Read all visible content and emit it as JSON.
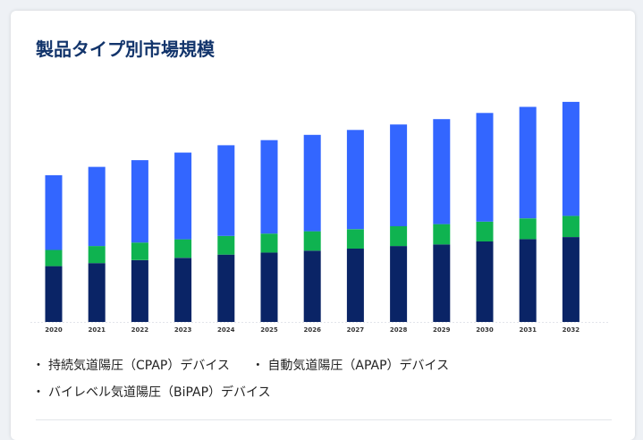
{
  "title": "製品タイプ別市場規模",
  "chart_data": {
    "type": "bar",
    "stacked": true,
    "categories": [
      "2020",
      "2021",
      "2022",
      "2023",
      "2024",
      "2025",
      "2026",
      "2027",
      "2028",
      "2029",
      "2030",
      "2031",
      "2032"
    ],
    "series": [
      {
        "name": "持続気道陽圧（CPAP）デバイス",
        "color": "#0a2466",
        "values": [
          24.2,
          25.5,
          26.8,
          27.8,
          29.2,
          30.1,
          30.9,
          31.8,
          32.9,
          33.6,
          34.9,
          35.9,
          36.8
        ]
      },
      {
        "name": "自動気道陽圧（APAP）デバイス",
        "color": "#0fb350",
        "values": [
          7.0,
          7.4,
          7.6,
          8.0,
          8.1,
          8.2,
          8.4,
          8.4,
          8.6,
          8.8,
          8.6,
          9.0,
          9.2
        ]
      },
      {
        "name": "バイレベル気道陽圧（BiPAP）デバイス",
        "color": "#3366ff",
        "values": [
          32.4,
          34.3,
          35.7,
          37.6,
          39.3,
          40.5,
          41.8,
          43.0,
          44.1,
          45.5,
          47.1,
          48.3,
          49.4
        ]
      }
    ],
    "ylim": [
      0,
      100
    ],
    "grid": false,
    "legend": "bottom"
  }
}
